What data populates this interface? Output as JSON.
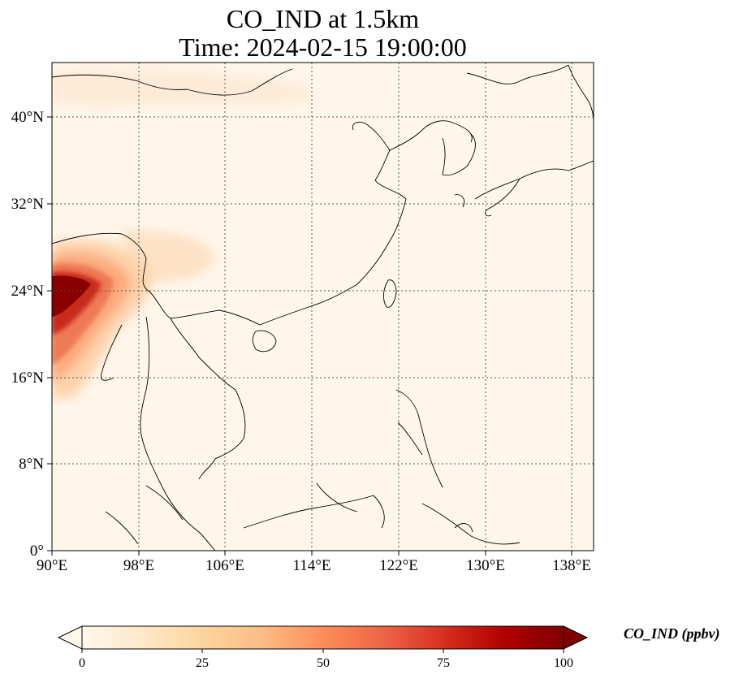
{
  "title": {
    "line1": "CO_IND at 1.5km",
    "line2": "Time: 2024-02-15 19:00:00"
  },
  "map": {
    "extent": {
      "lon": [
        90,
        140
      ],
      "lat": [
        0,
        44
      ]
    },
    "lon_ticks": [
      "90°E",
      "98°E",
      "106°E",
      "114°E",
      "122°E",
      "130°E",
      "138°E"
    ],
    "lat_ticks": [
      "0°",
      "8°N",
      "16°N",
      "24°N",
      "32°N",
      "40°N"
    ],
    "gridlines": "dotted",
    "field": "CO_IND",
    "hotspot_region": "northern Myanmar / eastern India border, approx 90-96°E, 20-26°N"
  },
  "colorbar": {
    "label": "CO_IND (ppbv)",
    "tick_labels": [
      "0",
      "25",
      "50",
      "75",
      "100"
    ],
    "min": 0,
    "max": 100,
    "extend": "both",
    "colormap": "OrRd",
    "colors": [
      "#fff7ec",
      "#fee8c8",
      "#fdd49e",
      "#fdbb84",
      "#fc8d59",
      "#ef6548",
      "#d7301f",
      "#b30000",
      "#7f0000"
    ]
  }
}
